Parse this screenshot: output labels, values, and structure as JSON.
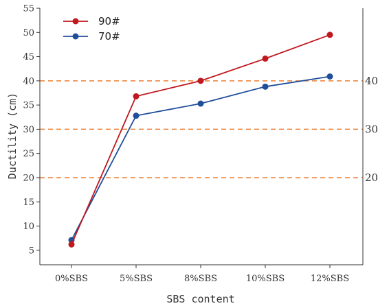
{
  "chart_data": {
    "type": "line",
    "title": "",
    "xlabel": "SBS content",
    "ylabel": "Ductility (cm)",
    "categories": [
      "0%SBS",
      "5%SBS",
      "8%SBS",
      "10%SBS",
      "12%SBS"
    ],
    "ylim": [
      2,
      55
    ],
    "yticks": [
      5,
      10,
      15,
      20,
      25,
      30,
      35,
      40,
      45,
      50,
      55
    ],
    "grid": false,
    "legend_position": "top-left",
    "reference_lines": [
      {
        "value": 40,
        "label": "40"
      },
      {
        "value": 30,
        "label": "30"
      },
      {
        "value": 20,
        "label": "20"
      }
    ],
    "reference_color": "#ed7d31",
    "series": [
      {
        "name": "90#",
        "color": "#c0181e",
        "values": [
          6.2,
          36.8,
          40.0,
          44.6,
          49.5
        ]
      },
      {
        "name": "70#",
        "color": "#1f4e9a",
        "values": [
          7.1,
          32.8,
          35.3,
          38.8,
          40.9
        ]
      }
    ]
  }
}
